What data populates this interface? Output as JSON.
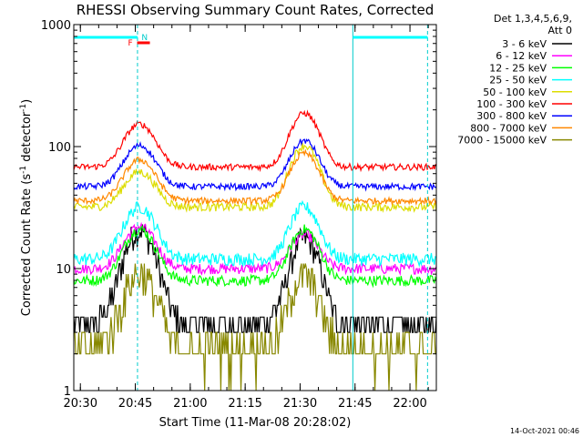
{
  "chart_data": {
    "type": "line",
    "title": "RHESSI Observing Summary Count Rates, Corrected",
    "xlabel": "Start Time (11-Mar-08 20:28:02)",
    "ylabel_main": "Corrected Count Rate (s",
    "ylabel_exp1": "-1",
    "ylabel_mid": " detector",
    "ylabel_exp2": "-1",
    "ylabel_end": ")",
    "yscale": "log",
    "xlim": [
      20.47,
      22.12
    ],
    "ylim": [
      1,
      1000
    ],
    "x_ticks": [
      {
        "value": 20.5,
        "label": "20:30"
      },
      {
        "value": 20.75,
        "label": "20:45"
      },
      {
        "value": 21.0,
        "label": "21:00"
      },
      {
        "value": 21.25,
        "label": "21:15"
      },
      {
        "value": 21.5,
        "label": "21:30"
      },
      {
        "value": 21.75,
        "label": "21:45"
      },
      {
        "value": 22.0,
        "label": "22:00"
      }
    ],
    "y_ticks": [
      {
        "value": 1,
        "label": "1"
      },
      {
        "value": 10,
        "label": "10"
      },
      {
        "value": 100,
        "label": "100"
      },
      {
        "value": 1000,
        "label": "1000"
      }
    ],
    "legend_header": [
      "Det 1,3,4,5,6,9,",
      "Att 0"
    ],
    "legend_position": "top-right outside",
    "series": [
      {
        "name": "3 - 6 keV",
        "color": "#000000",
        "base": 3.5,
        "amp1": 17,
        "amp2": 14,
        "noise": 0.25,
        "step": true
      },
      {
        "name": "6 - 12 keV",
        "color": "#ff00ff",
        "base": 10,
        "amp1": 12,
        "amp2": 9,
        "noise": 0.1
      },
      {
        "name": "12 - 25 keV",
        "color": "#00ff00",
        "base": 8,
        "amp1": 13,
        "amp2": 13,
        "noise": 0.1
      },
      {
        "name": "25 - 50 keV",
        "color": "#00ffff",
        "base": 12,
        "amp1": 20,
        "amp2": 20,
        "noise": 0.12
      },
      {
        "name": "50 - 100 keV",
        "color": "#dddd00",
        "base": 32,
        "amp1": 30,
        "amp2": 70,
        "noise": 0.08
      },
      {
        "name": "100 - 300 keV",
        "color": "#ff0000",
        "base": 68,
        "amp1": 85,
        "amp2": 120,
        "noise": 0.06
      },
      {
        "name": "300 - 800 keV",
        "color": "#0000ff",
        "base": 47,
        "amp1": 55,
        "amp2": 65,
        "noise": 0.06
      },
      {
        "name": "800 - 7000 keV",
        "color": "#ff8800",
        "base": 36,
        "amp1": 42,
        "amp2": 52,
        "noise": 0.06
      },
      {
        "name": "7000 - 15000 keV",
        "color": "#888800",
        "base": 2.2,
        "amp1": 7,
        "amp2": 6.5,
        "noise": 0.35,
        "step": true
      }
    ],
    "peaks": [
      20.77,
      21.52
    ],
    "peak_width": 0.09,
    "saa_intervals": [
      [
        20.47,
        20.76
      ],
      [
        21.74,
        22.08
      ]
    ],
    "vlines": [
      20.47,
      20.76,
      21.74,
      22.08
    ],
    "flags": [
      {
        "label": "N",
        "x": 20.77,
        "color": "#00cccc"
      },
      {
        "label": "F",
        "x": 20.75,
        "color": "#ff0000"
      }
    ],
    "timestamp": "14-Oct-2021 00:46"
  }
}
